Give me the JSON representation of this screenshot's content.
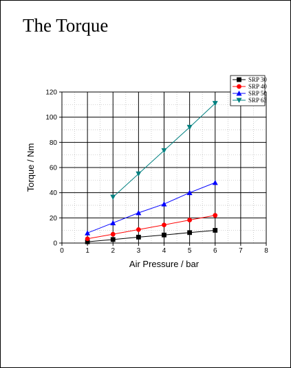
{
  "page": {
    "title": "The Torque"
  },
  "chart_data": {
    "type": "line",
    "title": "",
    "xlabel": "Air Pressure / bar",
    "ylabel": "Torque / Nm",
    "xlim": [
      0,
      8
    ],
    "ylim": [
      0,
      120
    ],
    "x_ticks": [
      0,
      1,
      2,
      3,
      4,
      5,
      6,
      7,
      8
    ],
    "y_ticks": [
      0,
      20,
      40,
      60,
      80,
      100,
      120
    ],
    "grid": true,
    "legend_position": "top-right",
    "series": [
      {
        "name": "SRP 30",
        "color": "#000000",
        "marker": "square",
        "x": [
          1,
          2,
          3,
          4,
          5,
          6
        ],
        "y": [
          1,
          2.8,
          4.7,
          6.4,
          8.3,
          10.1
        ]
      },
      {
        "name": "SRP 40",
        "color": "#ff0000",
        "marker": "circle",
        "x": [
          1,
          2,
          3,
          4,
          5,
          6
        ],
        "y": [
          3.4,
          7,
          10.7,
          14.4,
          18.3,
          22
        ]
      },
      {
        "name": "SRP 50",
        "color": "#0000ff",
        "marker": "triangle-up",
        "x": [
          1,
          2,
          3,
          4,
          5,
          6
        ],
        "y": [
          8,
          16,
          24,
          31,
          40,
          48
        ]
      },
      {
        "name": "SRP 63",
        "color": "#008080",
        "marker": "triangle-down",
        "x": [
          2,
          3,
          4,
          5,
          6
        ],
        "y": [
          36.5,
          55,
          73.5,
          92,
          111
        ]
      }
    ]
  }
}
